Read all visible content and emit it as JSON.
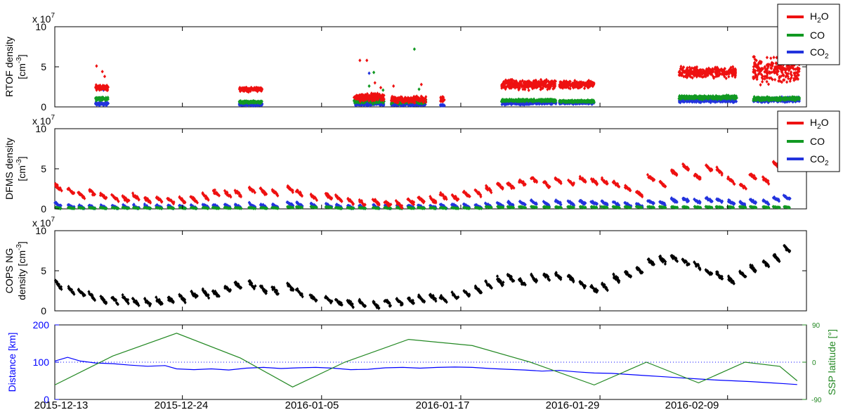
{
  "colors": {
    "h2o": "#ee1111",
    "co": "#119922",
    "co2": "#2233dd",
    "cops": "#000000",
    "distance": "#0000ff",
    "ssp": "#228822",
    "frame": "#000000"
  },
  "x_axis": {
    "tick_labels": [
      "2015-12-13",
      "2015-12-24",
      "2016-01-05",
      "2016-01-17",
      "2016-01-29",
      "2016-02-09"
    ],
    "tick_days": [
      0,
      11,
      23,
      35,
      47,
      58
    ],
    "range_days": [
      0,
      64.8
    ]
  },
  "chart_data": [
    {
      "type": "scatter",
      "panel": "rtof",
      "ylabel_line1": "RTOF density",
      "ylabel_line2": "[cm",
      "ylabel_unit_sup": "-3",
      "ylabel_close": "]",
      "exponent_base": "x 10",
      "exponent_power": "7",
      "ylim": [
        0,
        10
      ],
      "yticks": [
        "0",
        "5",
        "10"
      ],
      "legend": {
        "position": "outside-top-right",
        "entries": [
          {
            "label": "H",
            "sub": "2",
            "tail": "O",
            "series": "h2o"
          },
          {
            "label": "CO",
            "sub": "",
            "tail": "",
            "series": "co"
          },
          {
            "label": "CO",
            "sub": "2",
            "tail": "",
            "series": "co2"
          }
        ]
      },
      "series": [
        {
          "name": "H2O",
          "key": "h2o",
          "segments": [
            {
              "start": 3.5,
              "end": 4.6,
              "mean": 2.4,
              "spread": 0.5
            },
            {
              "start": 15.9,
              "end": 17.9,
              "mean": 2.2,
              "spread": 0.4
            },
            {
              "start": 25.8,
              "end": 28.4,
              "mean": 1.2,
              "spread": 0.6
            },
            {
              "start": 29.0,
              "end": 32.0,
              "mean": 0.9,
              "spread": 0.5
            },
            {
              "start": 33.2,
              "end": 33.6,
              "mean": 0.9,
              "spread": 0.4
            },
            {
              "start": 38.5,
              "end": 43.2,
              "mean": 2.8,
              "spread": 0.9
            },
            {
              "start": 43.5,
              "end": 46.5,
              "mean": 2.8,
              "spread": 0.6
            },
            {
              "start": 53.8,
              "end": 58.8,
              "mean": 4.3,
              "spread": 0.9
            },
            {
              "start": 60.2,
              "end": 64.2,
              "mean": 4.6,
              "spread": 2.2
            }
          ],
          "outliers": [
            [
              3.6,
              5.1
            ],
            [
              4.1,
              4.4
            ],
            [
              4.3,
              3.8
            ],
            [
              26.3,
              5.8
            ],
            [
              26.9,
              5.8
            ],
            [
              27.6,
              3.0
            ],
            [
              28.1,
              2.4
            ],
            [
              29.2,
              2.6
            ],
            [
              31.6,
              2.8
            ]
          ]
        },
        {
          "name": "CO",
          "key": "co",
          "segments": [
            {
              "start": 3.5,
              "end": 4.6,
              "mean": 1.0,
              "spread": 0.3
            },
            {
              "start": 15.9,
              "end": 17.9,
              "mean": 0.6,
              "spread": 0.2
            },
            {
              "start": 25.8,
              "end": 28.4,
              "mean": 0.8,
              "spread": 0.5
            },
            {
              "start": 29.0,
              "end": 32.0,
              "mean": 0.7,
              "spread": 0.4
            },
            {
              "start": 38.5,
              "end": 43.2,
              "mean": 0.8,
              "spread": 0.2
            },
            {
              "start": 43.5,
              "end": 46.5,
              "mean": 0.7,
              "spread": 0.2
            },
            {
              "start": 53.8,
              "end": 58.8,
              "mean": 1.2,
              "spread": 0.3
            },
            {
              "start": 60.2,
              "end": 64.2,
              "mean": 1.0,
              "spread": 0.3
            }
          ],
          "outliers": [
            [
              31.0,
              7.2
            ],
            [
              27.5,
              4.3
            ],
            [
              27.1,
              2.6
            ],
            [
              31.4,
              2.2
            ],
            [
              28.3,
              2.1
            ]
          ]
        },
        {
          "name": "CO2",
          "key": "co2",
          "segments": [
            {
              "start": 3.5,
              "end": 4.6,
              "mean": 0.4,
              "spread": 0.3
            },
            {
              "start": 15.9,
              "end": 17.9,
              "mean": 0.3,
              "spread": 0.2
            },
            {
              "start": 25.8,
              "end": 28.4,
              "mean": 0.4,
              "spread": 0.3
            },
            {
              "start": 29.0,
              "end": 32.0,
              "mean": 0.3,
              "spread": 0.2
            },
            {
              "start": 33.2,
              "end": 33.6,
              "mean": 0.2,
              "spread": 0.1
            },
            {
              "start": 38.5,
              "end": 43.2,
              "mean": 0.5,
              "spread": 0.3
            },
            {
              "start": 43.5,
              "end": 46.5,
              "mean": 0.5,
              "spread": 0.2
            },
            {
              "start": 53.8,
              "end": 58.8,
              "mean": 0.8,
              "spread": 0.3
            },
            {
              "start": 60.2,
              "end": 64.2,
              "mean": 0.9,
              "spread": 0.4
            }
          ],
          "outliers": [
            [
              27.1,
              4.2
            ],
            [
              4.2,
              2.1
            ]
          ]
        }
      ]
    },
    {
      "type": "scatter",
      "panel": "dfms",
      "ylabel_line1": "DFMS density",
      "ylabel_line2": "[cm",
      "ylabel_unit_sup": "-3",
      "ylabel_close": "]",
      "exponent_base": "x 10",
      "exponent_power": "7",
      "ylim": [
        0,
        10
      ],
      "yticks": [
        "0",
        "5",
        "10"
      ],
      "legend": {
        "position": "outside-top-right",
        "entries": [
          {
            "label": "H",
            "sub": "2",
            "tail": "O",
            "series": "h2o"
          },
          {
            "label": "CO",
            "sub": "",
            "tail": "",
            "series": "co"
          },
          {
            "label": "CO",
            "sub": "2",
            "tail": "",
            "series": "co2"
          }
        ]
      },
      "clusters_x": [
        0.3,
        1.4,
        2.3,
        3.2,
        4.2,
        5.2,
        6.1,
        7.0,
        8.0,
        9.0,
        10.0,
        11.0,
        12.0,
        13.0,
        13.9,
        14.9,
        15.8,
        17.0,
        18.0,
        19.0,
        20.3,
        21.1,
        22.3,
        23.6,
        24.5,
        25.5,
        26.5,
        27.7,
        28.7,
        29.7,
        30.7,
        31.6,
        32.6,
        33.5,
        34.5,
        35.5,
        36.5,
        37.4,
        38.4,
        39.3,
        40.3,
        41.3,
        42.4,
        43.4,
        44.5,
        45.5,
        46.5,
        47.4,
        48.4,
        49.4,
        50.4,
        51.4,
        52.4,
        53.4,
        54.4,
        55.4,
        56.4,
        57.3,
        58.3,
        59.3,
        60.2,
        61.3,
        62.2,
        63.1
      ],
      "series": [
        {
          "name": "H2O",
          "key": "h2o",
          "means": [
            2.6,
            2.1,
            1.6,
            2.0,
            1.5,
            1.3,
            1.2,
            1.4,
            1.0,
            1.1,
            1.0,
            1.0,
            1.1,
            1.5,
            1.9,
            1.8,
            1.9,
            2.3,
            2.1,
            2.0,
            2.4,
            1.9,
            1.4,
            1.5,
            1.2,
            0.9,
            0.7,
            0.8,
            0.6,
            0.5,
            0.9,
            1.1,
            1.0,
            1.5,
            1.4,
            1.8,
            1.9,
            2.4,
            2.8,
            2.8,
            3.2,
            3.6,
            3.0,
            3.5,
            3.2,
            3.6,
            3.4,
            3.4,
            3.0,
            2.5,
            1.8,
            3.8,
            3.0,
            4.5,
            5.1,
            4.0,
            5.0,
            4.6,
            3.5,
            2.8,
            4.0,
            3.5,
            5.5,
            6.2
          ],
          "spread": 0.6
        },
        {
          "name": "CO",
          "key": "co",
          "means": [
            0.1,
            0.1,
            0.1,
            0.1,
            0.1,
            0.1,
            0.1,
            0.1,
            0.1,
            0.1,
            0.1,
            0.1,
            0.1,
            0.1,
            0.1,
            0.1,
            0.1,
            0.1,
            0.1,
            0.1,
            0.2,
            0.2,
            0.2,
            0.2,
            0.1,
            0.1,
            0.1,
            0.1,
            0.1,
            0.1,
            0.1,
            0.1,
            0.1,
            0.1,
            0.1,
            0.1,
            0.1,
            0.2,
            0.2,
            0.2,
            0.2,
            0.2,
            0.2,
            0.2,
            0.2,
            0.2,
            0.2,
            0.2,
            0.2,
            0.2,
            0.2,
            0.2,
            0.2,
            0.2,
            0.2,
            0.2,
            0.2,
            0.2,
            0.2,
            0.2,
            0.2,
            0.2,
            0.2,
            0.2
          ],
          "spread": 0.1
        },
        {
          "name": "CO2",
          "key": "co2",
          "means": [
            0.5,
            0.3,
            0.2,
            0.2,
            0.2,
            0.2,
            0.2,
            0.2,
            0.2,
            0.2,
            0.2,
            0.2,
            0.2,
            0.3,
            0.3,
            0.3,
            0.3,
            0.4,
            0.3,
            0.3,
            0.6,
            0.5,
            0.4,
            0.4,
            0.3,
            0.2,
            0.2,
            0.2,
            0.2,
            0.2,
            0.2,
            0.2,
            0.2,
            0.3,
            0.3,
            0.3,
            0.3,
            0.4,
            0.5,
            0.6,
            0.7,
            0.8,
            0.6,
            0.8,
            0.7,
            0.8,
            0.7,
            0.7,
            0.6,
            0.5,
            0.4,
            0.8,
            0.7,
            1.0,
            1.1,
            0.9,
            1.1,
            1.0,
            0.8,
            0.6,
            0.9,
            0.8,
            1.2,
            1.4
          ],
          "spread": 0.4
        }
      ]
    },
    {
      "type": "scatter",
      "panel": "cops",
      "ylabel_line1": "COPS NG",
      "ylabel_line2": "density [cm",
      "ylabel_unit_sup": "-3",
      "ylabel_close": "]",
      "exponent_base": "x 10",
      "exponent_power": "7",
      "ylim": [
        0,
        10
      ],
      "yticks": [
        "0",
        "5",
        "10"
      ],
      "clusters_x": [
        0.3,
        1.4,
        2.3,
        3.2,
        4.2,
        5.2,
        6.1,
        7.0,
        8.0,
        9.0,
        10.0,
        11.0,
        12.0,
        13.0,
        13.9,
        14.9,
        15.8,
        17.0,
        18.0,
        19.0,
        20.3,
        21.1,
        22.3,
        23.6,
        24.5,
        25.5,
        26.5,
        27.7,
        28.7,
        29.7,
        30.7,
        31.6,
        32.6,
        33.5,
        34.5,
        35.5,
        36.5,
        37.4,
        38.4,
        39.3,
        40.3,
        41.3,
        42.4,
        43.4,
        44.5,
        45.5,
        46.5,
        47.4,
        48.4,
        49.4,
        50.4,
        51.4,
        52.4,
        53.4,
        54.4,
        55.4,
        56.4,
        57.3,
        58.3,
        59.3,
        60.2,
        61.3,
        62.2,
        63.1
      ],
      "series": [
        {
          "name": "NG",
          "key": "cops",
          "means": [
            3.2,
            2.5,
            2.2,
            1.8,
            1.3,
            1.2,
            1.4,
            1.0,
            1.0,
            1.1,
            1.3,
            1.5,
            2.0,
            2.1,
            2.1,
            2.7,
            3.1,
            3.2,
            2.6,
            2.5,
            2.9,
            2.2,
            1.5,
            1.3,
            1.0,
            0.9,
            0.8,
            0.6,
            1.0,
            1.1,
            1.2,
            1.4,
            1.6,
            1.4,
            1.8,
            2.1,
            2.6,
            3.2,
            3.6,
            4.0,
            3.5,
            4.0,
            4.2,
            4.2,
            4.0,
            3.2,
            2.6,
            3.0,
            4.0,
            4.5,
            5.0,
            6.0,
            6.3,
            6.5,
            6.0,
            5.5,
            4.7,
            4.3,
            3.7,
            4.5,
            5.2,
            5.8,
            6.6,
            7.7
          ],
          "spread": 0.7
        }
      ]
    },
    {
      "type": "line",
      "panel": "geometry",
      "ylabel_left": "Distance [km]",
      "ylabel_right": "SSP latitude [°]",
      "ylim_left": [
        0,
        200
      ],
      "yticks_left": [
        "0",
        "100",
        "200"
      ],
      "ylim_right": [
        -90,
        90
      ],
      "yticks_right": [
        "-90",
        "0",
        "90"
      ],
      "reference_line": {
        "axis": "right",
        "value": 0,
        "style": "dotted"
      },
      "series": [
        {
          "name": "Distance",
          "axis": "left",
          "key": "distance",
          "x": [
            0,
            1.1,
            2.2,
            3.5,
            5,
            6.5,
            8,
            9.5,
            10.5,
            12,
            13.5,
            15,
            16.5,
            18,
            19.5,
            21,
            22.5,
            24,
            25.5,
            27,
            28.5,
            30,
            31.5,
            33,
            34.5,
            36,
            37.5,
            39,
            40.5,
            42,
            43.5,
            45,
            46.5,
            48,
            49.5,
            51,
            52.5,
            54,
            55.5,
            57,
            58.5,
            60,
            61.5,
            63,
            64
          ],
          "y": [
            103,
            113,
            103,
            98,
            96,
            92,
            89,
            91,
            82,
            80,
            82,
            79,
            84,
            86,
            83,
            85,
            86,
            84,
            80,
            81,
            85,
            86,
            84,
            86,
            87,
            86,
            83,
            81,
            79,
            76,
            78,
            74,
            71,
            70,
            67,
            64,
            61,
            58,
            55,
            52,
            50,
            48,
            45,
            42,
            40
          ]
        },
        {
          "name": "SSP latitude",
          "axis": "right",
          "key": "ssp",
          "x": [
            0,
            5,
            10.5,
            16,
            20.5,
            25,
            30.5,
            36,
            41,
            46.5,
            51,
            55.5,
            59.5,
            62.5,
            64
          ],
          "y": [
            -55,
            15,
            70,
            10,
            -60,
            0,
            55,
            40,
            0,
            -55,
            0,
            -50,
            0,
            -10,
            -45
          ]
        }
      ]
    }
  ]
}
